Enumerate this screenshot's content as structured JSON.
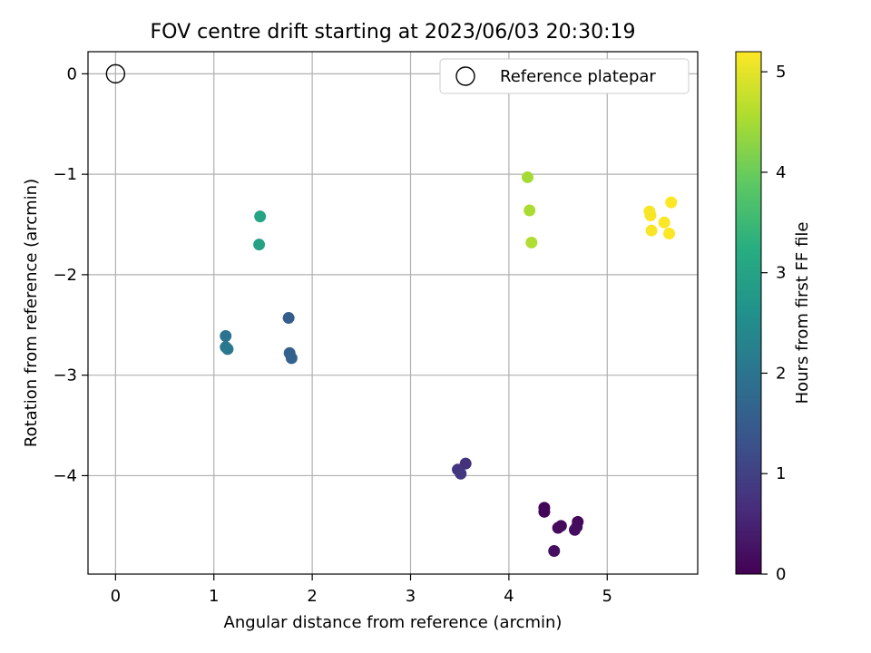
{
  "chart_data": {
    "type": "scatter",
    "title": "FOV centre drift starting at 2023/06/03 20:30:19",
    "xlabel": "Angular distance from reference (arcmin)",
    "ylabel": "Rotation from reference (arcmin)",
    "xlim": [
      -0.28,
      5.92
    ],
    "ylim": [
      -4.98,
      0.22
    ],
    "xticks": [
      0,
      1,
      2,
      3,
      4,
      5
    ],
    "yticks": [
      0,
      -1,
      -2,
      -3,
      -4
    ],
    "grid": true,
    "legend": {
      "placement": "top-right",
      "entries": [
        "Reference platepar"
      ]
    },
    "reference_point": {
      "x": 0,
      "y": 0,
      "label": "Reference platepar"
    },
    "colorbar": {
      "label": "Hours from first FF file",
      "colormap": "viridis",
      "range": [
        0,
        5.2
      ],
      "ticks": [
        0,
        1,
        2,
        3,
        4,
        5
      ]
    },
    "points": [
      {
        "x": 4.36,
        "y": -4.32,
        "hours": 0.05
      },
      {
        "x": 4.36,
        "y": -4.36,
        "hours": 0.08
      },
      {
        "x": 4.7,
        "y": -4.46,
        "hours": 0.1
      },
      {
        "x": 4.53,
        "y": -4.5,
        "hours": 0.12
      },
      {
        "x": 4.5,
        "y": -4.52,
        "hours": 0.14
      },
      {
        "x": 4.69,
        "y": -4.51,
        "hours": 0.16
      },
      {
        "x": 4.67,
        "y": -4.54,
        "hours": 0.18
      },
      {
        "x": 4.46,
        "y": -4.75,
        "hours": 0.2
      },
      {
        "x": 3.56,
        "y": -3.88,
        "hours": 0.75
      },
      {
        "x": 3.48,
        "y": -3.94,
        "hours": 0.8
      },
      {
        "x": 3.51,
        "y": -3.98,
        "hours": 0.85
      },
      {
        "x": 1.76,
        "y": -2.43,
        "hours": 1.55
      },
      {
        "x": 1.77,
        "y": -2.78,
        "hours": 1.6
      },
      {
        "x": 1.79,
        "y": -2.83,
        "hours": 1.65
      },
      {
        "x": 1.12,
        "y": -2.61,
        "hours": 2.0
      },
      {
        "x": 1.12,
        "y": -2.72,
        "hours": 2.05
      },
      {
        "x": 1.14,
        "y": -2.74,
        "hours": 2.1
      },
      {
        "x": 1.47,
        "y": -1.42,
        "hours": 3.05
      },
      {
        "x": 1.46,
        "y": -1.7,
        "hours": 3.0
      },
      {
        "x": 4.19,
        "y": -1.03,
        "hours": 4.5
      },
      {
        "x": 4.21,
        "y": -1.36,
        "hours": 4.55
      },
      {
        "x": 4.23,
        "y": -1.68,
        "hours": 4.6
      },
      {
        "x": 5.65,
        "y": -1.28,
        "hours": 5.2
      },
      {
        "x": 5.43,
        "y": -1.37,
        "hours": 5.15
      },
      {
        "x": 5.44,
        "y": -1.41,
        "hours": 5.15
      },
      {
        "x": 5.58,
        "y": -1.48,
        "hours": 5.18
      },
      {
        "x": 5.45,
        "y": -1.56,
        "hours": 5.16
      },
      {
        "x": 5.63,
        "y": -1.59,
        "hours": 5.19
      }
    ]
  }
}
